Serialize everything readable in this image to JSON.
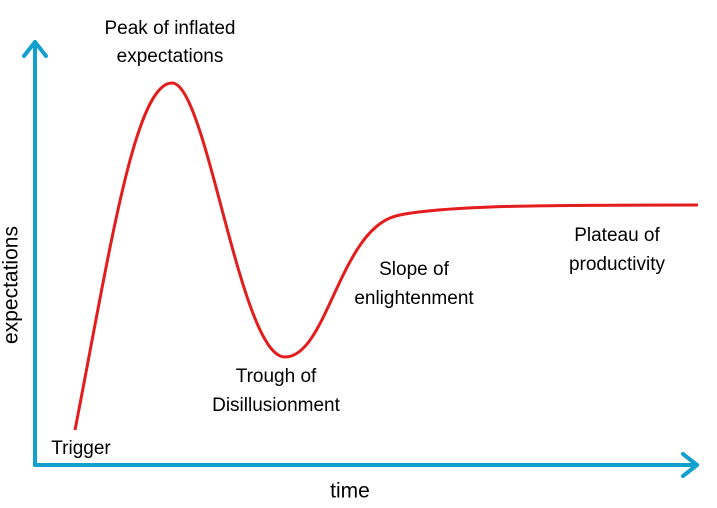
{
  "axes": {
    "x_label": "time",
    "y_label": "expectations"
  },
  "phases": [
    {
      "lines": [
        "Trigger"
      ]
    },
    {
      "lines": [
        "Peak of inflated",
        "expectations"
      ]
    },
    {
      "lines": [
        "Trough of",
        "Disillusionment"
      ]
    },
    {
      "lines": [
        "Slope of",
        "enlightenment"
      ]
    },
    {
      "lines": [
        "Plateau of",
        "productivity"
      ]
    }
  ]
}
